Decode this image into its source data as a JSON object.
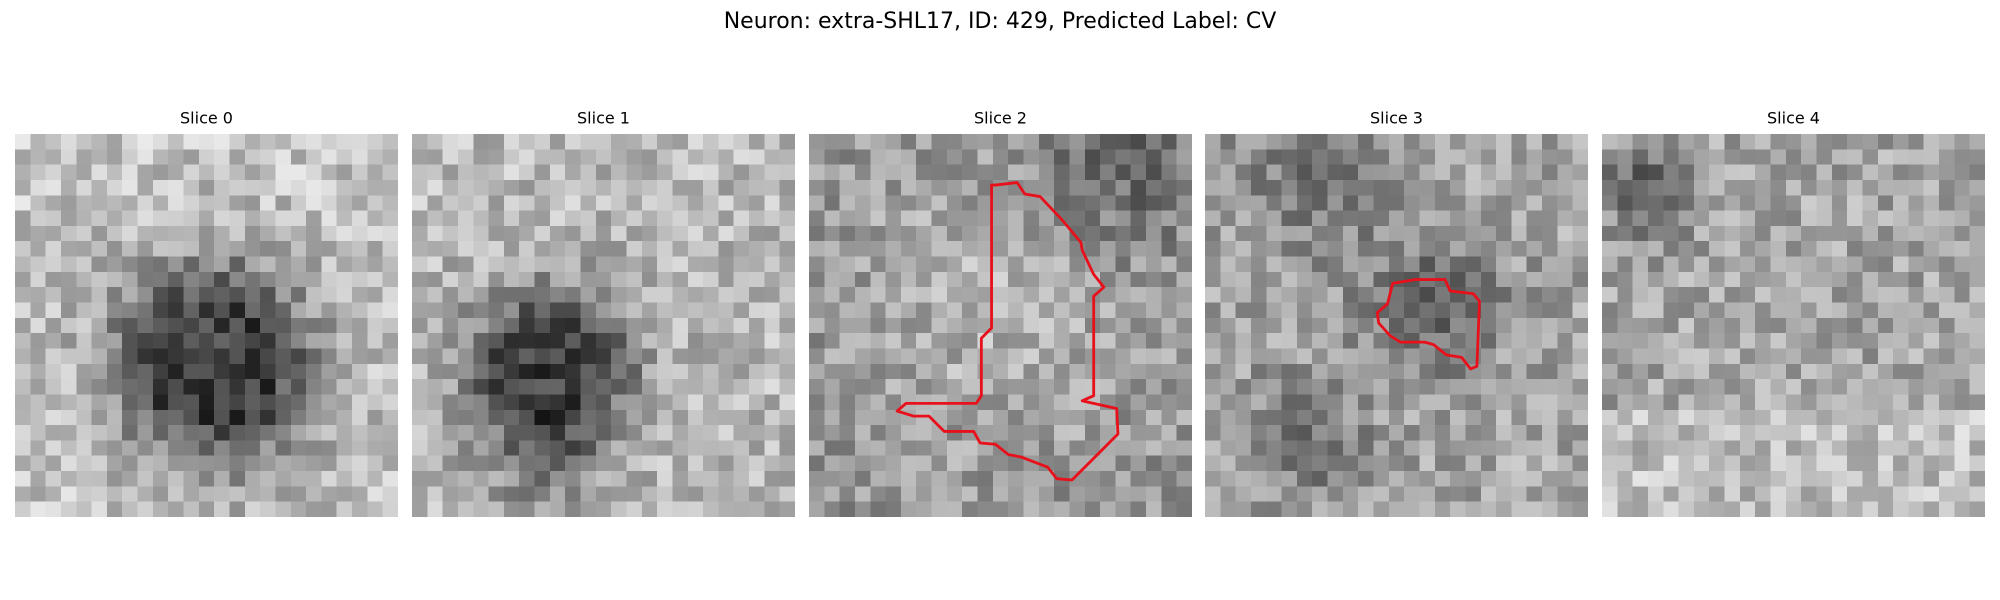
{
  "header": {
    "title": "Neuron: extra-SHL17, ID: 429, Predicted Label: CV"
  },
  "panels": [
    {
      "title": "Slice 0"
    },
    {
      "title": "Slice 1"
    },
    {
      "title": "Slice 2"
    },
    {
      "title": "Slice 3"
    },
    {
      "title": "Slice 4"
    }
  ]
}
